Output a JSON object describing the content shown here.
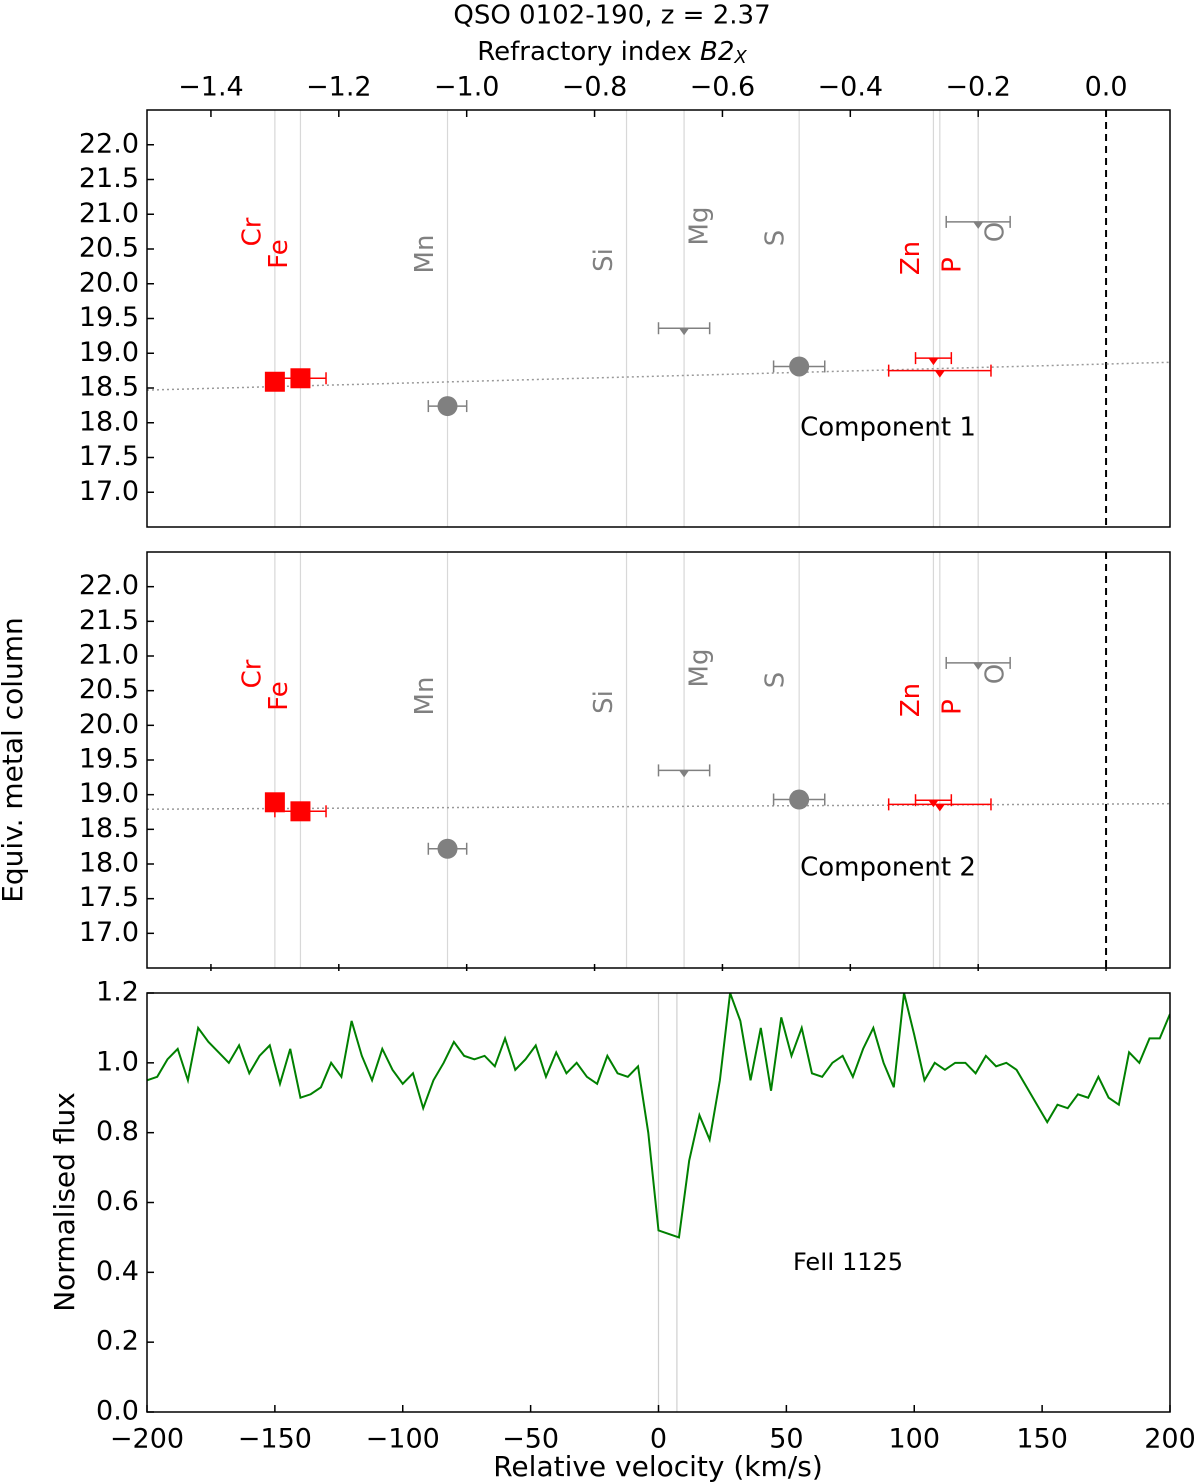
{
  "chart_data": [
    {
      "type": "scatter",
      "title": "QSO 0102-190, z = 2.37",
      "top_xlabel": "Refractory index",
      "top_xlabel_symbol": "B2",
      "top_xlabel_sub": "X",
      "ylabel": "Equiv. metal column",
      "label": "Component 1",
      "xlim": [
        -1.5,
        0.1
      ],
      "ylim": [
        16.5,
        22.5
      ],
      "xticks": [
        {
          "value": -1.4,
          "label": "−1.4"
        },
        {
          "value": -1.2,
          "label": "−1.2"
        },
        {
          "value": -1.0,
          "label": "−1.0"
        },
        {
          "value": -0.8,
          "label": "−0.8"
        },
        {
          "value": -0.6,
          "label": "−0.6"
        },
        {
          "value": -0.4,
          "label": "−0.4"
        },
        {
          "value": -0.2,
          "label": "−0.2"
        },
        {
          "value": 0,
          "label": "0.0"
        }
      ],
      "yticks": [
        {
          "value": 17,
          "label": "17.0"
        },
        17.5,
        {
          "value": 18,
          "label": "18.0"
        },
        18.5,
        {
          "value": 19,
          "label": "19.0"
        },
        19.5,
        {
          "value": 20,
          "label": "20.0"
        },
        20.5,
        {
          "value": 21,
          "label": "21.0"
        },
        21.5,
        {
          "value": 22,
          "label": "22.0"
        }
      ],
      "elements": [
        "Cr",
        "Fe",
        "Mn",
        "Si",
        "Mg",
        "S",
        "Zn",
        "P",
        "O"
      ],
      "x": [
        -1.3,
        -1.26,
        -1.03,
        -0.75,
        -0.66,
        -0.48,
        -0.27,
        -0.26,
        -0.2
      ],
      "colors": [
        "#ff0000",
        "#ff0000",
        "#808080",
        "#808080",
        "#808080",
        "#808080",
        "#ff0000",
        "#ff0000",
        "#808080"
      ],
      "values": [
        18.59,
        18.64,
        18.24,
        null,
        19.36,
        18.81,
        18.93,
        18.75,
        20.89
      ],
      "xerr": [
        0.01,
        0.04,
        0.03,
        null,
        0.04,
        0.04,
        0.028,
        0.08,
        0.05
      ],
      "markers": [
        "square",
        "square",
        "circle",
        null,
        "upper_limit",
        "circle",
        "upper_limit",
        "upper_limit",
        "upper_limit"
      ],
      "fit": {
        "x": [
          -1.5,
          0.1
        ],
        "y": [
          18.47,
          18.87
        ]
      },
      "zero_line": 0
    },
    {
      "type": "scatter",
      "label": "Component 2",
      "xlim": [
        -1.5,
        0.1
      ],
      "ylim": [
        16.5,
        22.5
      ],
      "xticks": [
        -1.4,
        -1.2,
        -1.0,
        -0.8,
        -0.6,
        -0.4,
        -0.2,
        0
      ],
      "yticks": [
        {
          "value": 17,
          "label": "17.0"
        },
        17.5,
        {
          "value": 18,
          "label": "18.0"
        },
        18.5,
        {
          "value": 19,
          "label": "19.0"
        },
        19.5,
        {
          "value": 20,
          "label": "20.0"
        },
        20.5,
        {
          "value": 21,
          "label": "21.0"
        },
        21.5,
        {
          "value": 22,
          "label": "22.0"
        }
      ],
      "elements": [
        "Cr",
        "Fe",
        "Mn",
        "Si",
        "Mg",
        "S",
        "Zn",
        "P",
        "O"
      ],
      "x": [
        -1.3,
        -1.26,
        -1.03,
        -0.75,
        -0.66,
        -0.48,
        -0.27,
        -0.26,
        -0.2
      ],
      "colors": [
        "#ff0000",
        "#ff0000",
        "#808080",
        "#808080",
        "#808080",
        "#808080",
        "#ff0000",
        "#ff0000",
        "#808080"
      ],
      "values": [
        18.89,
        18.76,
        18.22,
        null,
        19.35,
        18.93,
        18.92,
        18.86,
        20.9
      ],
      "xerr": [
        0.01,
        0.04,
        0.03,
        null,
        0.04,
        0.04,
        0.028,
        0.08,
        0.05
      ],
      "markers": [
        "square",
        "square",
        "circle",
        null,
        "upper_limit",
        "circle",
        "upper_limit",
        "upper_limit",
        "upper_limit"
      ],
      "fit": {
        "x": [
          -1.5,
          0.1
        ],
        "y": [
          18.79,
          18.87
        ]
      },
      "zero_line": 0
    },
    {
      "type": "line",
      "label": "FeII 1125",
      "xlabel": "Relative velocity (km/s)",
      "ylabel": "Normalised flux",
      "color": "#008000",
      "xlim": [
        -200,
        200
      ],
      "ylim": [
        0,
        1.2
      ],
      "xticks": [
        {
          "value": -200,
          "label": "−200"
        },
        {
          "value": -150,
          "label": "−150"
        },
        {
          "value": -100,
          "label": "−100"
        },
        {
          "value": -50,
          "label": "−50"
        },
        0,
        50,
        100,
        150,
        200
      ],
      "yticks": [
        {
          "value": 0,
          "label": "0.0"
        },
        0.2,
        0.4,
        0.6,
        0.8,
        {
          "value": 1,
          "label": "1.0"
        },
        1.2
      ],
      "vlines": [
        0,
        7.2
      ],
      "x": [
        -200,
        -196,
        -192,
        -188,
        -184,
        -180,
        -176,
        -172,
        -168,
        -164,
        -160,
        -156,
        -152,
        -148,
        -144,
        -140,
        -136,
        -132,
        -128,
        -124,
        -120,
        -116,
        -112,
        -108,
        -104,
        -100,
        -96,
        -92,
        -88,
        -84,
        -80,
        -76,
        -72,
        -68,
        -64,
        -60,
        -56,
        -52,
        -48,
        -44,
        -40,
        -36,
        -32,
        -28,
        -24,
        -20,
        -16,
        -12,
        -8,
        -4,
        0,
        4,
        8,
        12,
        16,
        20,
        24,
        28,
        32,
        36,
        40,
        44,
        48,
        52,
        56,
        60,
        64,
        68,
        72,
        76,
        80,
        84,
        88,
        92,
        96,
        100,
        104,
        108,
        112,
        116,
        120,
        124,
        128,
        132,
        136,
        140,
        144,
        148,
        152,
        156,
        160,
        164,
        168,
        172,
        176,
        180,
        184,
        188,
        192,
        196,
        200
      ],
      "values": [
        0.95,
        0.96,
        1.01,
        1.04,
        0.95,
        1.1,
        1.06,
        1.03,
        1.0,
        1.05,
        0.97,
        1.02,
        1.05,
        0.94,
        1.04,
        0.9,
        0.91,
        0.93,
        1.0,
        0.96,
        1.12,
        1.02,
        0.95,
        1.04,
        0.98,
        0.94,
        0.97,
        0.87,
        0.95,
        1.0,
        1.06,
        1.02,
        1.01,
        1.02,
        0.99,
        1.07,
        0.98,
        1.01,
        1.05,
        0.96,
        1.03,
        0.97,
        1.0,
        0.96,
        0.94,
        1.02,
        0.97,
        0.96,
        0.99,
        0.8,
        0.52,
        0.51,
        0.5,
        0.72,
        0.85,
        0.78,
        0.95,
        1.2,
        1.12,
        0.95,
        1.1,
        0.92,
        1.13,
        1.02,
        1.1,
        0.97,
        0.96,
        1.0,
        1.02,
        0.96,
        1.04,
        1.1,
        1.0,
        0.93,
        1.2,
        1.08,
        0.95,
        1.0,
        0.98,
        1.0,
        1.0,
        0.97,
        1.02,
        0.99,
        1.0,
        0.98,
        0.93,
        0.88,
        0.83,
        0.88,
        0.87,
        0.91,
        0.9,
        0.96,
        0.9,
        0.88,
        1.03,
        1.0,
        1.07,
        1.07,
        1.14
      ]
    }
  ]
}
